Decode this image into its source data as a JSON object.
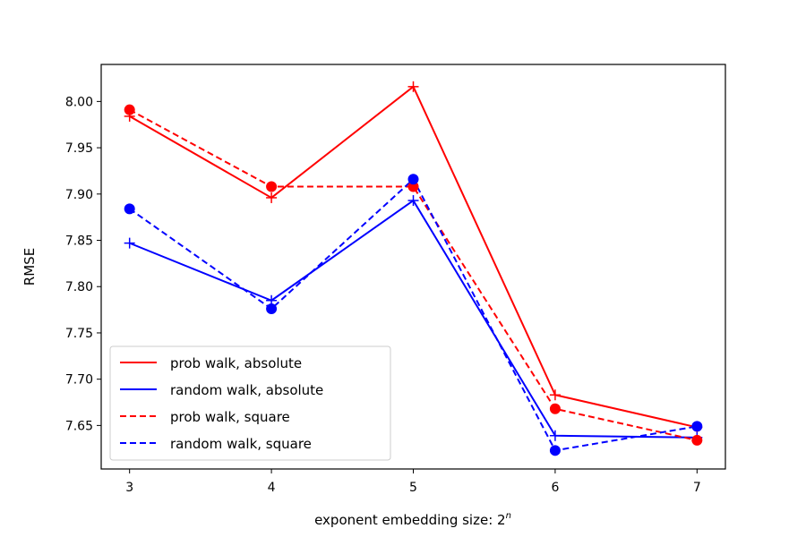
{
  "chart_data": {
    "type": "line",
    "title": "",
    "xlabel": "exponent embedding size: 2",
    "xlabel_superscript": "n",
    "ylabel": "RMSE",
    "x": [
      3,
      4,
      5,
      6,
      7
    ],
    "xticks": [
      "3",
      "4",
      "5",
      "6",
      "7"
    ],
    "yticks": [
      "7.65",
      "7.70",
      "7.75",
      "7.80",
      "7.85",
      "7.90",
      "7.95",
      "8.00"
    ],
    "xlim": [
      2.8,
      7.2
    ],
    "ylim": [
      7.603,
      8.04
    ],
    "grid": false,
    "legend_position": "lower-left",
    "series": [
      {
        "name": "prob walk, absolute",
        "color": "#ff0000",
        "line_style": "solid",
        "marker": "plus",
        "values": [
          7.984,
          7.896,
          8.016,
          7.683,
          7.648
        ]
      },
      {
        "name": "random walk, absolute",
        "color": "#0000ff",
        "line_style": "solid",
        "marker": "plus",
        "values": [
          7.847,
          7.785,
          7.893,
          7.639,
          7.637
        ]
      },
      {
        "name": "prob walk, square",
        "color": "#ff0000",
        "line_style": "dashed",
        "marker": "circle",
        "values": [
          7.991,
          7.908,
          7.908,
          7.668,
          7.634
        ]
      },
      {
        "name": "random walk, square",
        "color": "#0000ff",
        "line_style": "dashed",
        "marker": "circle",
        "values": [
          7.884,
          7.776,
          7.916,
          7.623,
          7.649
        ]
      }
    ]
  }
}
